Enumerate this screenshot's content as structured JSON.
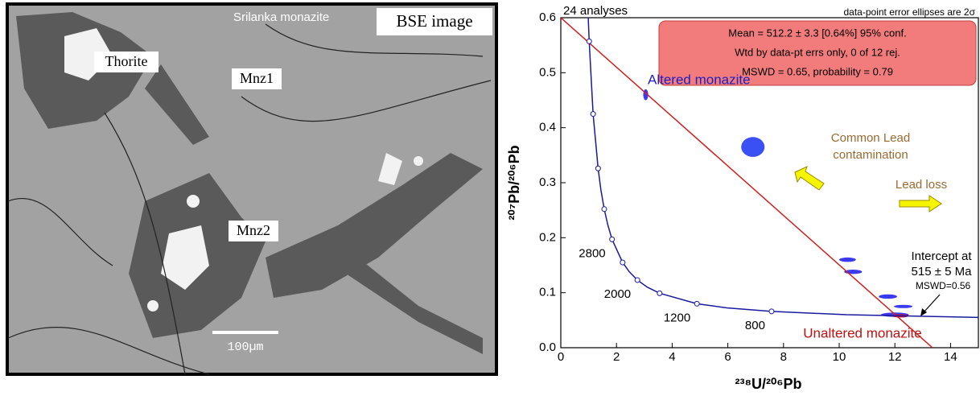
{
  "image": {
    "sample": "Srilanka monazite",
    "caption": "BSE image",
    "labels": [
      "Thorite",
      "Mnz1",
      "Mnz2"
    ],
    "scale_bar": "100µm"
  },
  "chart_data": {
    "type": "concordia",
    "xlabel": "²³⁸U/²⁰⁶Pb",
    "ylabel": "²⁰⁷Pb/²⁰⁶Pb",
    "xlim": [
      0,
      15
    ],
    "ylim": [
      0,
      0.6
    ],
    "xticks": [
      0,
      2,
      4,
      6,
      8,
      10,
      12,
      14
    ],
    "yticks": [
      {
        "value": 0,
        "label": "0.0"
      },
      0.1,
      0.2,
      0.3,
      0.4,
      0.5,
      0.6
    ],
    "analyses_note": "24 analyses",
    "error_note": "data-point error ellipses are 2σ",
    "stats_box": [
      "Mean = 512.2 ± 3.3  [0.64%]  95% conf.",
      "Wtd by data-pt errs only, 0 of 12 rej.",
      "MSWD = 0.65, probability = 0.79"
    ],
    "altered_label": "Altered monazite",
    "unaltered_label": "Unaltered monazite",
    "common_lead_label": [
      "Common Lead",
      "contamination"
    ],
    "lead_loss_label": "Lead loss",
    "intercept_label": [
      "Intercept at",
      "515 ± 5 Ma",
      "MSWD=0.56"
    ],
    "concordia": {
      "color": "#1a1aa0",
      "x": [
        0.985,
        1.02,
        1.16,
        1.34,
        1.44,
        1.56,
        1.69,
        1.84,
        2.22,
        2.46,
        2.75,
        3.11,
        3.55,
        4.89,
        5.96,
        7.57,
        10.26,
        15
      ],
      "y": [
        0.6,
        0.557,
        0.425,
        0.326,
        0.287,
        0.252,
        0.223,
        0.197,
        0.155,
        0.138,
        0.123,
        0.11,
        0.099,
        0.08,
        0.0725,
        0.066,
        0.06,
        0.055
      ]
    },
    "age_markers": {
      "x": [
        1.02,
        1.16,
        1.34,
        1.56,
        1.84,
        2.22,
        2.75,
        3.55,
        4.89,
        7.57
      ],
      "y": [
        0.557,
        0.425,
        0.326,
        0.252,
        0.197,
        0.155,
        0.123,
        0.099,
        0.08,
        0.066
      ],
      "labels": [
        null,
        null,
        null,
        null,
        "2800",
        null,
        "2000",
        null,
        "1200",
        "800"
      ]
    },
    "regression": {
      "color": "#d02020",
      "x": [
        0,
        13.35
      ],
      "y": [
        0.6,
        0
      ]
    },
    "ellipses": [
      {
        "x": 3.05,
        "y": 0.46,
        "x_err": 0.09,
        "y_err": 0.01,
        "color": "#3a3af0"
      },
      {
        "x": 6.9,
        "y": 0.365,
        "x_err": 0.42,
        "y_err": 0.018,
        "color": "#3a50f5"
      },
      {
        "x": 10.3,
        "y": 0.16,
        "x_err": 0.3,
        "y_err": 0.004,
        "color": "#3a3af0"
      },
      {
        "x": 10.5,
        "y": 0.138,
        "x_err": 0.32,
        "y_err": 0.004,
        "color": "#3a3af0"
      },
      {
        "x": 11.75,
        "y": 0.093,
        "x_err": 0.33,
        "y_err": 0.004,
        "color": "#3a3af0"
      },
      {
        "x": 12.3,
        "y": 0.075,
        "x_err": 0.33,
        "y_err": 0.003,
        "color": "#3a3af0"
      },
      {
        "x": 12.0,
        "y": 0.06,
        "x_err": 0.5,
        "y_err": 0.004,
        "color": "#3a3af0"
      },
      {
        "x": 12.2,
        "y": 0.058,
        "x_err": 0.3,
        "y_err": 0.003,
        "color": "#c01040"
      }
    ]
  }
}
